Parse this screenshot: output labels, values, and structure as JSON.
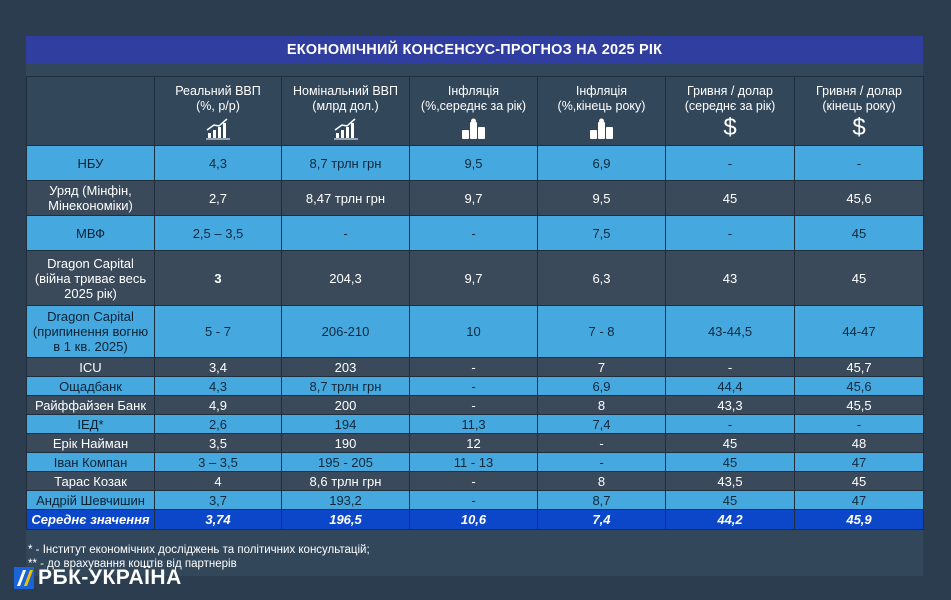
{
  "title": "ЕКОНОМІЧНИЙ КОНСЕНСУС-ПРОГНОЗ НА 2025 РІК",
  "columns": [
    {
      "line1": "Реальний ВВП",
      "line2": "(%, р/р)",
      "icon": "growth-chart-icon"
    },
    {
      "line1": "Номінальний ВВП",
      "line2": "(млрд дол.)",
      "icon": "growth-chart-icon"
    },
    {
      "line1": "Інфляція",
      "line2": "(%,середнє за рік)",
      "icon": "coins-stack-icon"
    },
    {
      "line1": "Інфляція",
      "line2": "(%,кінець року)",
      "icon": "coins-stack-icon"
    },
    {
      "line1": "Гривня / долар",
      "line2": "(середнє за рік)",
      "icon": "dollar-icon",
      "symbol": "$"
    },
    {
      "line1": "Гривня / долар",
      "line2": "(кінець року)",
      "icon": "dollar-icon",
      "symbol": "$"
    }
  ],
  "rows": [
    {
      "name": "НБУ",
      "values": [
        "4,3",
        "8,7 трлн грн",
        "9,5",
        "6,9",
        "-",
        "-"
      ]
    },
    {
      "name": "Уряд (Мінфін, Мінекономіки)",
      "values": [
        "2,7",
        "8,47 трлн грн",
        "9,7",
        "9,5",
        "45",
        "45,6"
      ]
    },
    {
      "name": "МВФ",
      "values": [
        "2,5 – 3,5",
        "-",
        "-",
        "7,5",
        "-",
        "45"
      ]
    },
    {
      "name": "Dragon Capital (війна триває весь 2025 рік)",
      "values": [
        "3",
        "204,3",
        "9,7",
        "6,3",
        "43",
        "45"
      ]
    },
    {
      "name": "Dragon Capital (припинення вогню в 1 кв. 2025)",
      "values": [
        "5 - 7",
        "206-210",
        "10",
        "7 - 8",
        "43-44,5",
        "44-47"
      ]
    },
    {
      "name": "ICU",
      "values": [
        "3,4",
        "203",
        "-",
        "7",
        "-",
        "45,7"
      ]
    },
    {
      "name": "Ощадбанк",
      "values": [
        "4,3",
        "8,7 трлн грн",
        "-",
        "6,9",
        "44,4",
        "45,6"
      ]
    },
    {
      "name": "Райффайзен Банк",
      "values": [
        "4,9",
        "200",
        "-",
        "8",
        "43,3",
        "45,5"
      ]
    },
    {
      "name": "ІЕД*",
      "values": [
        "2,6",
        "194",
        "11,3",
        "7,4",
        "-",
        "-"
      ]
    },
    {
      "name": "Ерік Найман",
      "values": [
        "3,5",
        "190",
        "12",
        "-",
        "45",
        "48"
      ]
    },
    {
      "name": "Іван Компан",
      "values": [
        "3 – 3,5",
        "195 - 205",
        "11 - 13",
        "-",
        "45",
        "47"
      ]
    },
    {
      "name": "Тарас Козак",
      "values": [
        "4",
        "8,6 трлн грн",
        "-",
        "8",
        "43,5",
        "45"
      ]
    },
    {
      "name": "Андрій Шевчишин",
      "values": [
        "3,7",
        "193,2",
        "-",
        "8,7",
        "45",
        "47"
      ]
    }
  ],
  "average": {
    "name": "Середнє значення",
    "values": [
      "3,74",
      "196,5",
      "10,6",
      "7,4",
      "44,2",
      "45,9"
    ]
  },
  "footnotes": [
    "*   - Інститут економічних досліджень та політичних консультацій;",
    "**  - до врахування коштів від партнерів"
  ],
  "logo": "РБК-УКРАЇНА",
  "colors": {
    "title_bg": "#2f3e9f",
    "row_light": "#45a9e0",
    "row_dark": "#3a4a5a",
    "avg_bg": "#0d47c9"
  }
}
